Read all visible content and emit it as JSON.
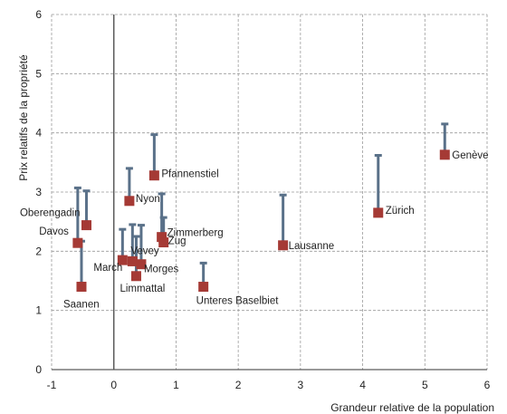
{
  "chart_data": {
    "type": "scatter",
    "title": "",
    "xlabel": "Grandeur relative de la population",
    "ylabel": "Prix relatifs de la propriété",
    "xlim": [
      -1,
      6
    ],
    "ylim": [
      0,
      6
    ],
    "x_ticks": [
      "-1",
      "0",
      "1",
      "2",
      "3",
      "4",
      "5",
      "6"
    ],
    "y_ticks": [
      "0",
      "1",
      "2",
      "3",
      "4",
      "5",
      "6"
    ],
    "grid": "both",
    "legend": "none",
    "colors": {
      "marker": "#a53a35",
      "whisker": "#5a7189",
      "grid": "#9a9a9a",
      "zero_line": "#5a5a5a"
    },
    "points": [
      {
        "label": "Genève",
        "x": 5.32,
        "y": 3.63,
        "upper": 4.15
      },
      {
        "label": "Zürich",
        "x": 4.25,
        "y": 2.65,
        "upper": 3.62
      },
      {
        "label": "Lausanne",
        "x": 2.72,
        "y": 2.1,
        "upper": 2.95
      },
      {
        "label": "Pfannenstiel",
        "x": 0.65,
        "y": 3.28,
        "upper": 3.97
      },
      {
        "label": "Nyon",
        "x": 0.25,
        "y": 2.85,
        "upper": 3.4
      },
      {
        "label": "Zimmerberg",
        "x": 0.77,
        "y": 2.24,
        "upper": 2.97
      },
      {
        "label": "Zug",
        "x": 0.8,
        "y": 2.15,
        "upper": 2.57
      },
      {
        "label": "Oberengadin",
        "x": -0.44,
        "y": 2.44,
        "upper": 3.02
      },
      {
        "label": "Davos",
        "x": -0.58,
        "y": 2.14,
        "upper": 3.07
      },
      {
        "label": "Vevey",
        "x": 0.3,
        "y": 1.83,
        "upper": 2.45
      },
      {
        "label": "March",
        "x": 0.14,
        "y": 1.85,
        "upper": 2.37
      },
      {
        "label": "Morges",
        "x": 0.44,
        "y": 1.78,
        "upper": 2.44
      },
      {
        "label": "Limmattal",
        "x": 0.36,
        "y": 1.58,
        "upper": 2.25
      },
      {
        "label": "Saanen",
        "x": -0.52,
        "y": 1.4,
        "upper": 2.17
      },
      {
        "label": "Unteres Baselbiet",
        "x": 1.44,
        "y": 1.4,
        "upper": 1.8
      }
    ]
  }
}
